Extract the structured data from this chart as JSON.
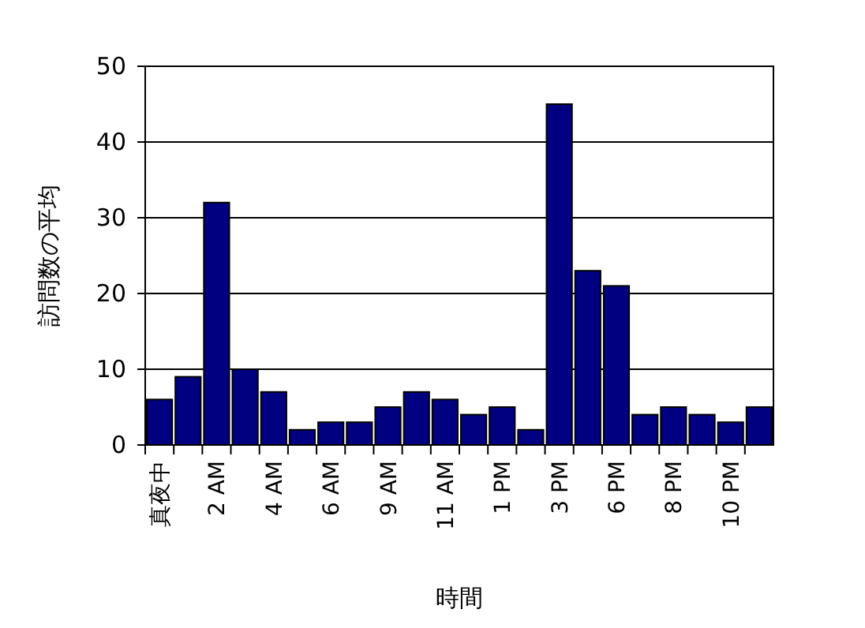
{
  "chart_data": {
    "type": "bar",
    "xlabel": "時間",
    "ylabel": "訪問数の平均",
    "categories": [
      "真夜中",
      null,
      "2 AM",
      null,
      "4 AM",
      null,
      "6 AM",
      null,
      "9 AM",
      null,
      "11 AM",
      null,
      "1 PM",
      null,
      "3 PM",
      null,
      "6 PM",
      null,
      "8 PM",
      null,
      "10 PM",
      null
    ],
    "values": [
      6,
      9,
      32,
      10,
      7,
      2,
      3,
      3,
      5,
      7,
      6,
      4,
      5,
      2,
      45,
      23,
      21,
      4,
      5,
      4,
      3,
      5
    ],
    "color": "#000080",
    "ylim": [
      0,
      50
    ],
    "yticks": [
      0,
      10,
      20,
      30,
      40,
      50
    ],
    "grid": "y"
  }
}
